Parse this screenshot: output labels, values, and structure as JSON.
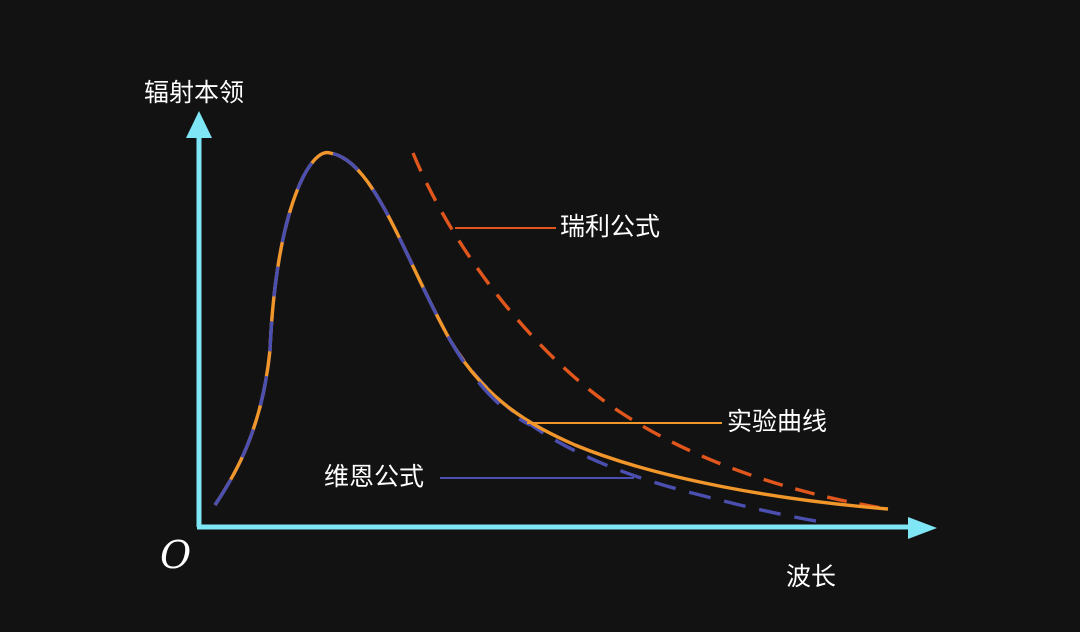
{
  "axes": {
    "y_label": "辐射本领",
    "x_label": "波长",
    "origin_label": "O",
    "color": "#7fe6f5"
  },
  "curves": {
    "experimental": {
      "label": "实验曲线",
      "color": "#f0962a",
      "style": "solid"
    },
    "wien": {
      "label": "维恩公式",
      "color": "#4b4fb0",
      "style": "dashed"
    },
    "rayleigh": {
      "label": "瑞利公式",
      "color": "#e0561c",
      "style": "dashed"
    }
  }
}
